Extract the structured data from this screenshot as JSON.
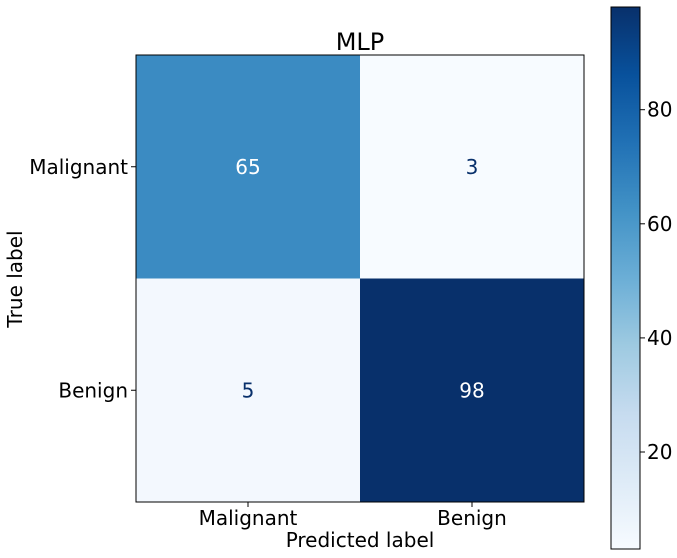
{
  "chart_data": {
    "type": "heatmap",
    "title": "MLP",
    "xlabel": "Predicted label",
    "ylabel": "True label",
    "x_categories": [
      "Malignant",
      "Benign"
    ],
    "y_categories": [
      "Malignant",
      "Benign"
    ],
    "matrix": [
      [
        65,
        3
      ],
      [
        5,
        98
      ]
    ],
    "colormap": "Blues",
    "colorbar": {
      "ticks": [
        20,
        40,
        60,
        80
      ],
      "tick_labels": [
        "20",
        "40",
        "60",
        "80"
      ],
      "range": [
        3,
        98
      ]
    },
    "colors": {
      "low": "#f7fbff",
      "high": "#08306b",
      "text_dark": "#08306b",
      "text_light": "#ffffff"
    }
  }
}
